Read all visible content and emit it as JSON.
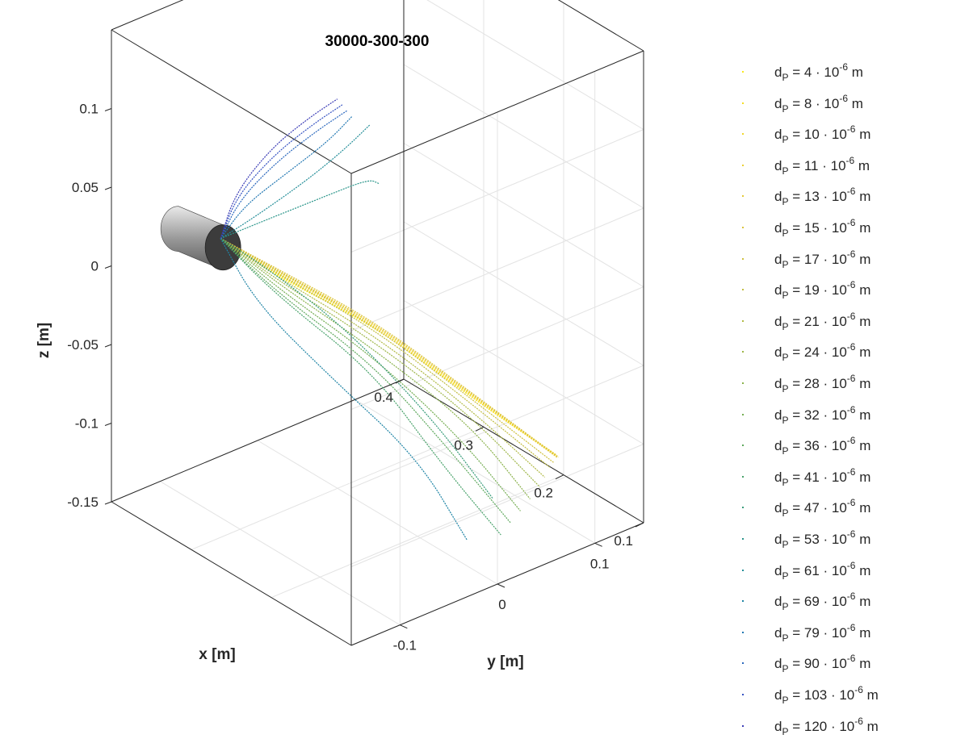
{
  "chart_data": {
    "type": "line",
    "title": "30000-300-300",
    "xlabel": "x [m]",
    "ylabel": "y [m]",
    "zlabel": "z [m]",
    "xlim": [
      0.1,
      0.4
    ],
    "ylim": [
      -0.15,
      0.15
    ],
    "zlim": [
      -0.15,
      0.15
    ],
    "x_ticks": [
      "0.1",
      "0.2",
      "0.3",
      "0.4"
    ],
    "y_ticks": [
      "-0.1",
      "0",
      "0.1"
    ],
    "z_ticks": [
      "0.1",
      "0.05",
      "0",
      "-0.05",
      "-0.1",
      "-0.15"
    ],
    "grid": true,
    "legend_position": "outside right",
    "cylinder": {
      "center_x": 0.3,
      "center_y": -0.13,
      "center_z": 0.04,
      "radius": 0.02
    },
    "series": [
      {
        "name": "d_P = 4 · 10^-6 m",
        "color": "#f9e91c",
        "points": [
          [
            0.3,
            -0.12,
            0.04
          ],
          [
            0.28,
            -0.08,
            0.012
          ],
          [
            0.23,
            -0.02,
            -0.02
          ],
          [
            0.17,
            0.03,
            -0.06
          ],
          [
            0.12,
            0.075,
            -0.093
          ]
        ]
      },
      {
        "name": "d_P = 8 · 10^-6 m",
        "color": "#f5dd22",
        "points": [
          [
            0.3,
            -0.12,
            0.04
          ],
          [
            0.28,
            -0.08,
            0.013
          ],
          [
            0.23,
            -0.02,
            -0.02
          ],
          [
            0.17,
            0.03,
            -0.06
          ],
          [
            0.12,
            0.076,
            -0.094
          ]
        ]
      },
      {
        "name": "d_P = 10 · 10^-6 m",
        "color": "#f1d62a",
        "points": [
          [
            0.3,
            -0.12,
            0.04
          ],
          [
            0.28,
            -0.08,
            0.014
          ],
          [
            0.23,
            -0.02,
            -0.019
          ],
          [
            0.17,
            0.03,
            -0.059
          ],
          [
            0.12,
            0.077,
            -0.094
          ]
        ]
      },
      {
        "name": "d_P = 11 · 10^-6 m",
        "color": "#eccf31",
        "points": [
          [
            0.3,
            -0.12,
            0.04
          ],
          [
            0.28,
            -0.08,
            0.015
          ],
          [
            0.23,
            -0.02,
            -0.018
          ],
          [
            0.17,
            0.03,
            -0.058
          ],
          [
            0.12,
            0.078,
            -0.095
          ]
        ]
      },
      {
        "name": "d_P = 13 · 10^-6 m",
        "color": "#e5c937",
        "points": [
          [
            0.3,
            -0.12,
            0.04
          ],
          [
            0.28,
            -0.08,
            0.016
          ],
          [
            0.23,
            -0.02,
            -0.018
          ],
          [
            0.17,
            0.03,
            -0.058
          ],
          [
            0.12,
            0.078,
            -0.096
          ]
        ]
      },
      {
        "name": "d_P = 15 · 10^-6 m",
        "color": "#dbc43c",
        "points": [
          [
            0.3,
            -0.12,
            0.04
          ],
          [
            0.28,
            -0.08,
            0.017
          ],
          [
            0.23,
            -0.02,
            -0.017
          ],
          [
            0.17,
            0.03,
            -0.057
          ],
          [
            0.12,
            0.079,
            -0.096
          ]
        ]
      },
      {
        "name": "d_P = 17 · 10^-6 m",
        "color": "#cfc03f",
        "points": [
          [
            0.3,
            -0.12,
            0.04
          ],
          [
            0.28,
            -0.08,
            0.016
          ],
          [
            0.23,
            -0.02,
            -0.02
          ],
          [
            0.17,
            0.03,
            -0.061
          ],
          [
            0.12,
            0.074,
            -0.098
          ]
        ]
      },
      {
        "name": "d_P = 19 · 10^-6 m",
        "color": "#c2bd42",
        "points": [
          [
            0.3,
            -0.12,
            0.04
          ],
          [
            0.28,
            -0.08,
            0.014
          ],
          [
            0.23,
            -0.02,
            -0.022
          ],
          [
            0.17,
            0.03,
            -0.064
          ],
          [
            0.12,
            0.07,
            -0.1
          ]
        ]
      },
      {
        "name": "d_P = 21 · 10^-6 m",
        "color": "#b1ba45",
        "points": [
          [
            0.3,
            -0.12,
            0.04
          ],
          [
            0.28,
            -0.08,
            0.012
          ],
          [
            0.23,
            -0.02,
            -0.026
          ],
          [
            0.17,
            0.03,
            -0.068
          ],
          [
            0.12,
            0.065,
            -0.105
          ]
        ]
      },
      {
        "name": "d_P = 24 · 10^-6 m",
        "color": "#9eb648",
        "points": [
          [
            0.3,
            -0.12,
            0.04
          ],
          [
            0.28,
            -0.08,
            0.01
          ],
          [
            0.23,
            -0.02,
            -0.03
          ],
          [
            0.17,
            0.03,
            -0.072
          ],
          [
            0.12,
            0.06,
            -0.11
          ]
        ]
      },
      {
        "name": "d_P = 28 · 10^-6 m",
        "color": "#8ab24b",
        "points": [
          [
            0.3,
            -0.12,
            0.04
          ],
          [
            0.28,
            -0.08,
            0.008
          ],
          [
            0.23,
            -0.02,
            -0.035
          ],
          [
            0.17,
            0.03,
            -0.078
          ],
          [
            0.12,
            0.05,
            -0.115
          ]
        ]
      },
      {
        "name": "d_P = 32 · 10^-6 m",
        "color": "#74ad52",
        "points": [
          [
            0.3,
            -0.12,
            0.04
          ],
          [
            0.28,
            -0.08,
            0.005
          ],
          [
            0.23,
            -0.02,
            -0.04
          ],
          [
            0.17,
            0.02,
            -0.084
          ],
          [
            0.12,
            0.04,
            -0.12
          ]
        ]
      },
      {
        "name": "d_P = 36 · 10^-6 m",
        "color": "#5da85c",
        "points": [
          [
            0.3,
            -0.12,
            0.04
          ],
          [
            0.28,
            -0.08,
            0.002
          ],
          [
            0.23,
            -0.02,
            -0.045
          ],
          [
            0.17,
            0.01,
            -0.09
          ],
          [
            0.12,
            0.03,
            -0.125
          ]
        ]
      },
      {
        "name": "d_P = 41 · 10^-6 m",
        "color": "#48a26a",
        "points": [
          [
            0.3,
            -0.12,
            0.04
          ],
          [
            0.28,
            -0.08,
            0.0
          ],
          [
            0.23,
            -0.02,
            -0.05
          ],
          [
            0.17,
            0.0,
            -0.095
          ],
          [
            0.12,
            0.02,
            -0.13
          ]
        ]
      },
      {
        "name": "d_P = 47 · 10^-6 m",
        "color": "#379c7a",
        "points": [
          [
            0.3,
            -0.12,
            0.04
          ],
          [
            0.28,
            -0.09,
            0.02
          ],
          [
            0.24,
            -0.04,
            -0.02
          ],
          [
            0.18,
            0.0,
            -0.07
          ],
          [
            0.13,
            0.02,
            -0.11
          ]
        ]
      },
      {
        "name": "d_P = 53 · 10^-6 m",
        "color": "#2a958a",
        "points": [
          [
            0.3,
            -0.12,
            0.04
          ],
          [
            0.28,
            -0.09,
            0.05
          ],
          [
            0.24,
            -0.06,
            0.07
          ],
          [
            0.2,
            -0.05,
            0.09
          ],
          [
            0.15,
            -0.08,
            0.11
          ]
        ]
      },
      {
        "name": "d_P = 61 · 10^-6 m",
        "color": "#228d98",
        "points": [
          [
            0.3,
            -0.12,
            0.04
          ],
          [
            0.27,
            -0.11,
            0.06
          ],
          [
            0.23,
            -0.09,
            0.09
          ],
          [
            0.19,
            -0.085,
            0.12
          ],
          [
            0.15,
            -0.09,
            0.15
          ]
        ]
      },
      {
        "name": "d_P = 69 · 10^-6 m",
        "color": "#1f84a5",
        "points": [
          [
            0.3,
            -0.12,
            0.04
          ],
          [
            0.28,
            -0.1,
            0.0
          ],
          [
            0.25,
            -0.05,
            -0.05
          ],
          [
            0.2,
            0.0,
            -0.1
          ],
          [
            0.15,
            0.01,
            -0.14
          ]
        ]
      },
      {
        "name": "d_P = 79 · 10^-6 m",
        "color": "#2177b2",
        "points": [
          [
            0.3,
            -0.12,
            0.04
          ],
          [
            0.27,
            -0.12,
            0.07
          ],
          [
            0.23,
            -0.11,
            0.1
          ],
          [
            0.19,
            -0.1,
            0.13
          ],
          [
            0.16,
            -0.1,
            0.155
          ]
        ]
      },
      {
        "name": "d_P = 90 · 10^-6 m",
        "color": "#2a67bd",
        "points": [
          [
            0.3,
            -0.12,
            0.04
          ],
          [
            0.27,
            -0.125,
            0.075
          ],
          [
            0.23,
            -0.12,
            0.11
          ],
          [
            0.19,
            -0.11,
            0.14
          ],
          [
            0.16,
            -0.105,
            0.16
          ]
        ]
      },
      {
        "name": "d_P = 103 · 10^-6 m",
        "color": "#3552c2",
        "points": [
          [
            0.3,
            -0.12,
            0.04
          ],
          [
            0.27,
            -0.128,
            0.078
          ],
          [
            0.23,
            -0.123,
            0.115
          ],
          [
            0.19,
            -0.115,
            0.145
          ],
          [
            0.16,
            -0.11,
            0.165
          ]
        ]
      },
      {
        "name": "d_P = 120 · 10^-6 m",
        "color": "#3b3cb6",
        "points": [
          [
            0.3,
            -0.12,
            0.04
          ],
          [
            0.27,
            -0.13,
            0.08
          ],
          [
            0.23,
            -0.126,
            0.12
          ],
          [
            0.19,
            -0.12,
            0.15
          ],
          [
            0.16,
            -0.115,
            0.17
          ]
        ]
      }
    ]
  }
}
